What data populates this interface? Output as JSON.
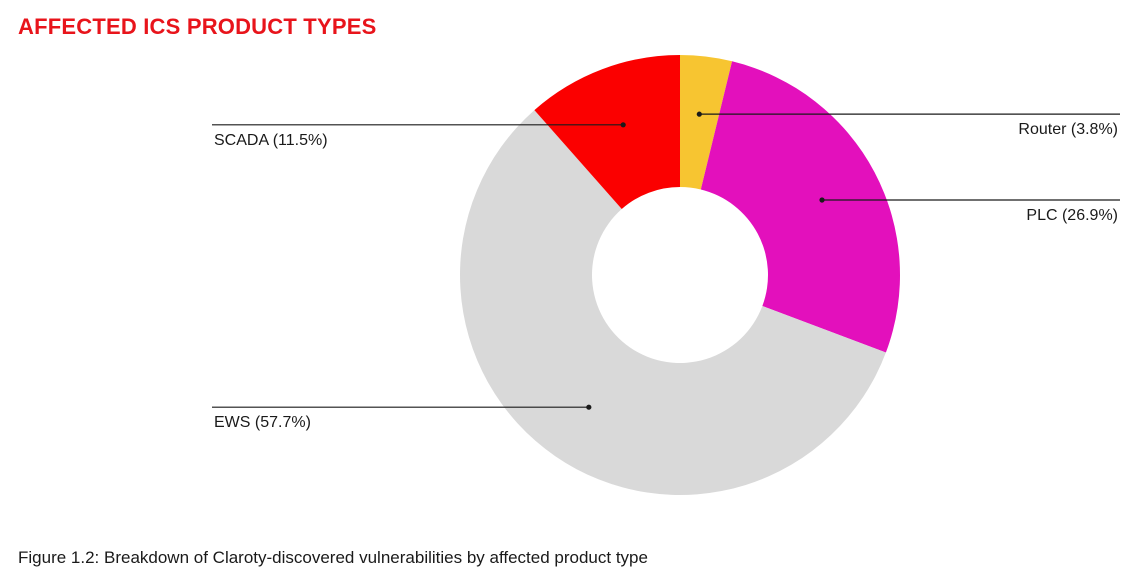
{
  "title": "AFFECTED ICS PRODUCT TYPES",
  "caption": "Figure 1.2: Breakdown of Claroty-discovered vulnerabilities by affected product type",
  "colors": {
    "title": "#e8141b",
    "leader": "#1a1a1a"
  },
  "chart_data": {
    "type": "pie",
    "variant": "donut",
    "start": "top",
    "direction": "clockwise",
    "slices": [
      {
        "label": "Router (3.8%)",
        "value": 3.8,
        "color": "#f7c531",
        "label_side": "right"
      },
      {
        "label": "PLC (26.9%)",
        "value": 26.9,
        "color": "#e310bc",
        "label_side": "right"
      },
      {
        "label": "EWS (57.7%)",
        "value": 57.7,
        "color": "#d9d9d9",
        "label_side": "left"
      },
      {
        "label": "SCADA (11.5%)",
        "value": 11.5,
        "color": "#fb0000",
        "label_side": "left"
      }
    ]
  }
}
